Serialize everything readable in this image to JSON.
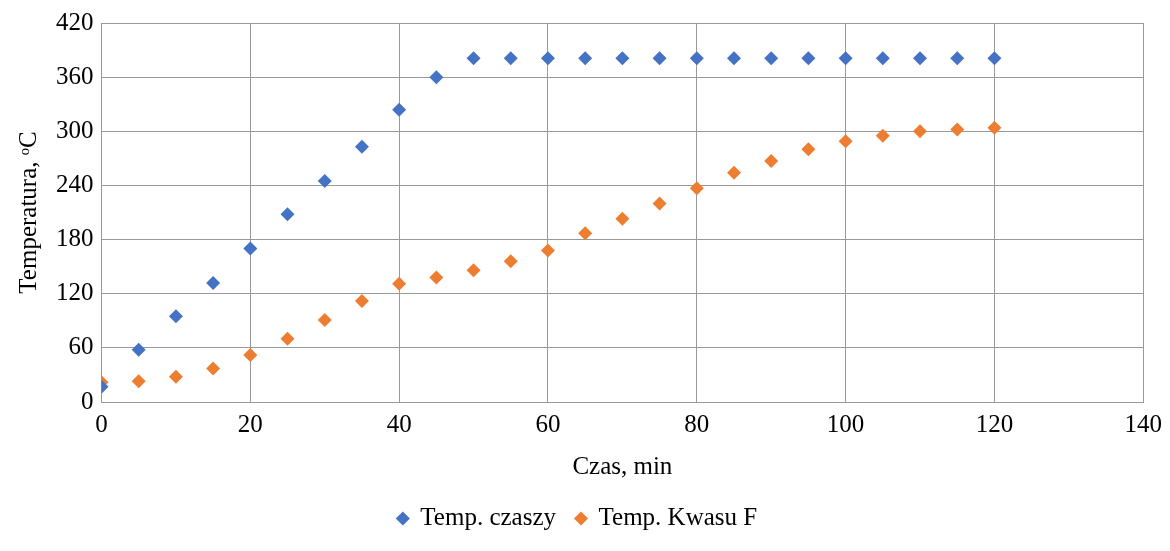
{
  "chart_data": {
    "type": "scatter",
    "xlabel": "Czas, min",
    "ylabel": "Temperatura, ᵒC",
    "x": [
      0,
      5,
      10,
      15,
      20,
      25,
      30,
      35,
      40,
      45,
      50,
      55,
      60,
      65,
      70,
      75,
      80,
      85,
      90,
      95,
      100,
      105,
      110,
      115,
      120
    ],
    "series": [
      {
        "name": "Temp. czaszy",
        "color": "#4472c4",
        "values": [
          17,
          58,
          95,
          132,
          170,
          208,
          245,
          283,
          324,
          360,
          381,
          381,
          381,
          381,
          381,
          381,
          381,
          381,
          381,
          381,
          381,
          381,
          381,
          381,
          381
        ]
      },
      {
        "name": "Temp. Kwasu F",
        "color": "#ed7d31",
        "values": [
          22,
          23,
          28,
          37,
          52,
          70,
          91,
          112,
          131,
          138,
          146,
          156,
          168,
          187,
          203,
          220,
          237,
          254,
          267,
          280,
          289,
          295,
          300,
          302,
          304
        ]
      }
    ],
    "xlim": [
      0,
      140
    ],
    "xticks": [
      0,
      20,
      40,
      60,
      80,
      100,
      120,
      140
    ],
    "ylim": [
      0,
      420
    ],
    "yticks": [
      0,
      60,
      120,
      180,
      240,
      300,
      360,
      420
    ],
    "grid": true,
    "legend": "bottom",
    "marker": "diamond"
  }
}
